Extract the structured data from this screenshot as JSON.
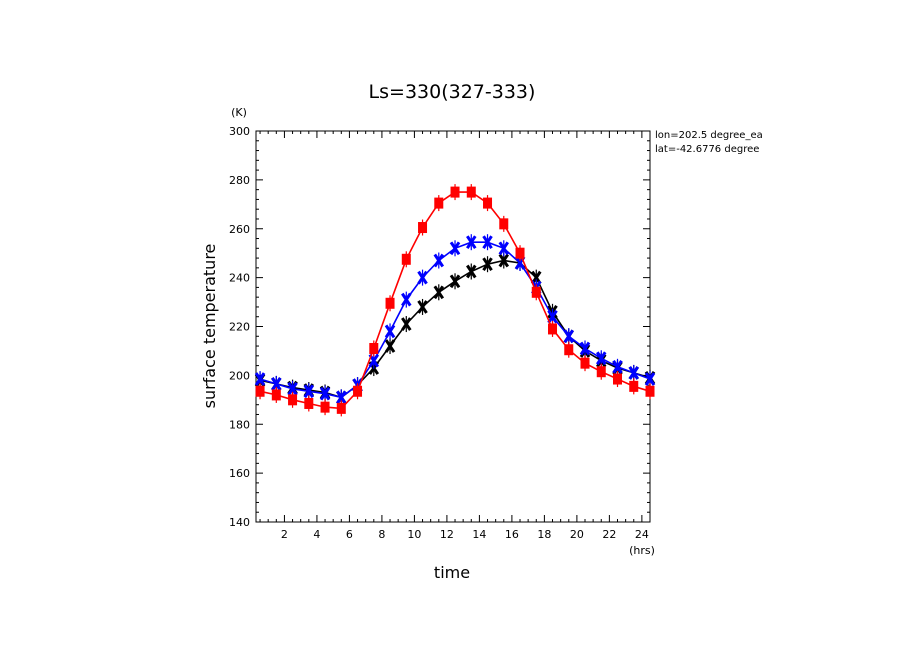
{
  "chart_data": {
    "type": "line",
    "title": "Ls=330(327-333)",
    "xlabel": "time",
    "ylabel": "surface temperature",
    "xunit": "(hrs)",
    "yunit": "(K)",
    "xlim": [
      0.25,
      24.5
    ],
    "ylim": [
      140,
      300
    ],
    "xticks": [
      2,
      4,
      6,
      8,
      10,
      12,
      14,
      16,
      18,
      20,
      22,
      24
    ],
    "yticks": [
      140,
      160,
      180,
      200,
      220,
      240,
      260,
      280,
      300
    ],
    "annotations": [
      "lon=202.5 degree_ea",
      "lat=-42.6776 degree"
    ],
    "grid": false,
    "x": [
      0.5,
      1.5,
      2.5,
      3.5,
      4.5,
      5.5,
      6.5,
      7.5,
      8.5,
      9.5,
      10.5,
      11.5,
      12.5,
      13.5,
      14.5,
      15.5,
      16.5,
      17.5,
      18.5,
      19.5,
      20.5,
      21.5,
      22.5,
      23.5,
      24.5
    ],
    "series": [
      {
        "color": "#000000",
        "marker": "x",
        "values": [
          198,
          196.5,
          195,
          194,
          193,
          191,
          196,
          203,
          212,
          221,
          228,
          234,
          238.5,
          242.5,
          245.5,
          247,
          246,
          240,
          226,
          216,
          210,
          206,
          203,
          201,
          199
        ]
      },
      {
        "color": "#0000ff",
        "marker": "x",
        "values": [
          198.5,
          196.5,
          194.5,
          193.5,
          192.5,
          191,
          196,
          206,
          218,
          231,
          240,
          247,
          252,
          254.5,
          254.5,
          252,
          246,
          236,
          224,
          216,
          211,
          207,
          203.5,
          201,
          198.5
        ]
      },
      {
        "color": "#ff0000",
        "marker": "square",
        "values": [
          193.5,
          192,
          190,
          188.5,
          187,
          186.5,
          193.5,
          211,
          229.5,
          247.5,
          260.5,
          270.5,
          275,
          275,
          270.5,
          262,
          250,
          234,
          219,
          210.5,
          205,
          201.5,
          198.5,
          195.5,
          193.5
        ]
      }
    ]
  }
}
